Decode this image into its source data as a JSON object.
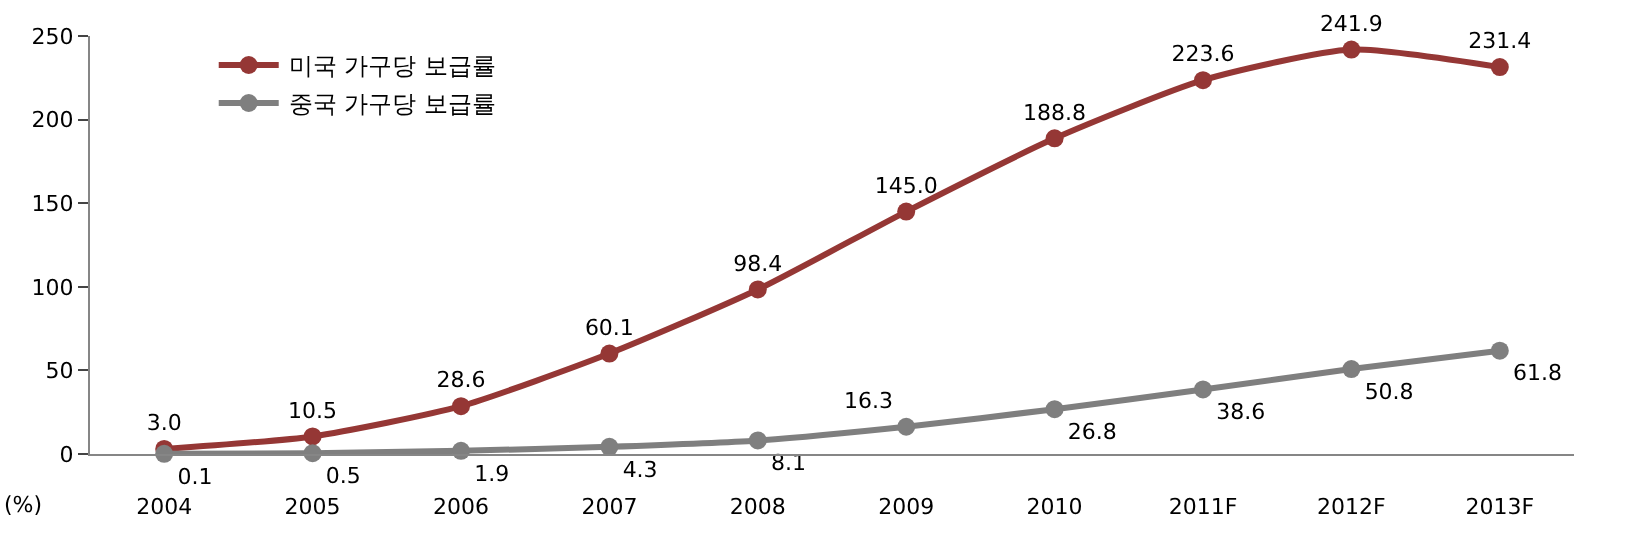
{
  "chart_data": {
    "type": "line",
    "ylabel": "(%)",
    "categories": [
      "2004",
      "2005",
      "2006",
      "2007",
      "2008",
      "2009",
      "2010",
      "2011F",
      "2012F",
      "2013F"
    ],
    "series": [
      {
        "name": "미국 가구당 보급률",
        "color": "#953735",
        "values": [
          3.0,
          10.5,
          28.6,
          60.1,
          98.4,
          145.0,
          188.8,
          223.6,
          241.9,
          231.4
        ],
        "value_labels": [
          "3.0",
          "10.5",
          "28.6",
          "60.1",
          "98.4",
          "145.0",
          "188.8",
          "223.6",
          "241.9",
          "231.4"
        ]
      },
      {
        "name": "중국 가구당 보급률",
        "color": "#7f7f7f",
        "values": [
          0.1,
          0.5,
          1.9,
          4.3,
          8.1,
          16.3,
          26.8,
          38.6,
          50.8,
          61.8
        ],
        "value_labels": [
          "0.1",
          "0.5",
          "1.9",
          "4.3",
          "8.1",
          "16.3",
          "26.8",
          "38.6",
          "50.8",
          "61.8"
        ]
      }
    ],
    "ylim": [
      0,
      250
    ],
    "yticks": [
      0,
      50,
      100,
      150,
      200,
      250
    ],
    "legend": "top left",
    "marker": "circle",
    "line_style": "solid"
  }
}
